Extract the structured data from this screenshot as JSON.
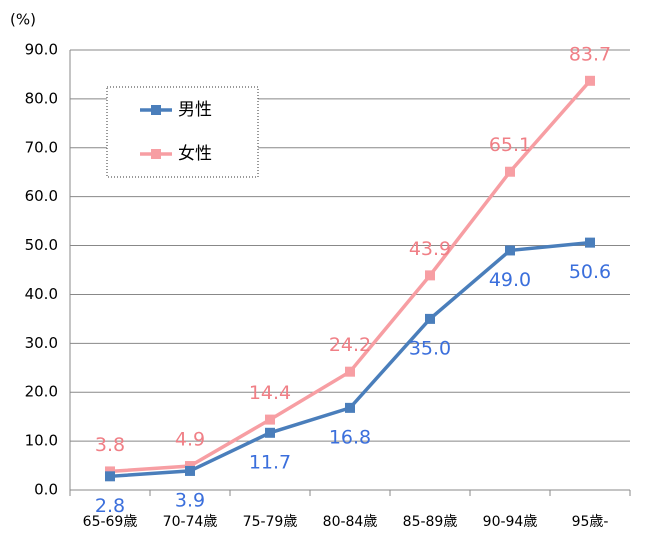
{
  "chart_data": {
    "type": "line",
    "y_label": "(%)",
    "categories": [
      "65-69歳",
      "70-74歳",
      "75-79歳",
      "80-84歳",
      "85-89歳",
      "90-94歳",
      "95歳-"
    ],
    "series": [
      {
        "name": "男性",
        "color": "#4a7ebb",
        "label_color": "#3b6fdc",
        "values": [
          2.8,
          3.9,
          11.7,
          16.8,
          35.0,
          49.0,
          50.6
        ],
        "value_labels": [
          "2.8",
          "3.9",
          "11.7",
          "16.8",
          "35.0",
          "49.0",
          "50.6"
        ]
      },
      {
        "name": "女性",
        "color": "#f79ea3",
        "label_color": "#f07f86",
        "values": [
          3.8,
          4.9,
          14.4,
          24.2,
          43.9,
          65.1,
          83.7
        ],
        "value_labels": [
          "3.8",
          "4.9",
          "14.4",
          "24.2",
          "43.9",
          "65.1",
          "83.7"
        ]
      }
    ],
    "ylim": [
      0,
      90
    ],
    "yticks": [
      {
        "value": 0,
        "label": "0.0"
      },
      {
        "value": 10,
        "label": "10.0"
      },
      {
        "value": 20,
        "label": "20.0"
      },
      {
        "value": 30,
        "label": "30.0"
      },
      {
        "value": 40,
        "label": "40.0"
      },
      {
        "value": 50,
        "label": "50.0"
      },
      {
        "value": 60,
        "label": "60.0"
      },
      {
        "value": 70,
        "label": "70.0"
      },
      {
        "value": 80,
        "label": "80.0"
      },
      {
        "value": 90,
        "label": "90.0"
      }
    ],
    "grid": true,
    "legend": "upper left"
  }
}
